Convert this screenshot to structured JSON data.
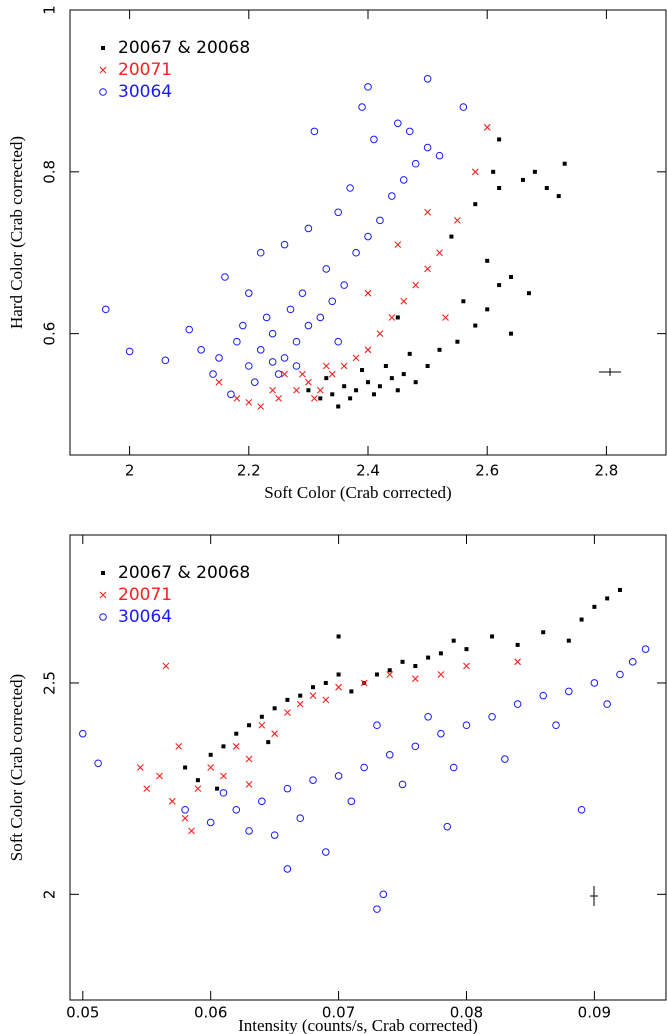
{
  "chart_data": [
    {
      "type": "scatter",
      "xlabel": "Soft Color (Crab corrected)",
      "ylabel": "Hard Color (Crab corrected)",
      "xlim": [
        1.9,
        2.9
      ],
      "ylim": [
        0.45,
        1
      ],
      "xticks": [
        2,
        2.2,
        2.4,
        2.6,
        2.8
      ],
      "yticks": [
        0.6,
        0.8,
        1
      ],
      "series": [
        {
          "name": "20067 & 20068",
          "color": "#000000",
          "marker": "square",
          "x": [
            2.3,
            2.32,
            2.34,
            2.36,
            2.38,
            2.4,
            2.42,
            2.44,
            2.46,
            2.48,
            2.33,
            2.37,
            2.41,
            2.45,
            2.5,
            2.35,
            2.39,
            2.43,
            2.47,
            2.52,
            2.55,
            2.58,
            2.6,
            2.56,
            2.62,
            2.64,
            2.6,
            2.54,
            2.58,
            2.62,
            2.66,
            2.68,
            2.7,
            2.72,
            2.73,
            2.61,
            2.62,
            2.64,
            2.67,
            2.45
          ],
          "values": [
            0.53,
            0.52,
            0.525,
            0.535,
            0.53,
            0.54,
            0.535,
            0.545,
            0.55,
            0.54,
            0.545,
            0.52,
            0.525,
            0.53,
            0.56,
            0.51,
            0.555,
            0.56,
            0.575,
            0.58,
            0.59,
            0.61,
            0.63,
            0.64,
            0.66,
            0.67,
            0.69,
            0.72,
            0.76,
            0.78,
            0.79,
            0.8,
            0.78,
            0.77,
            0.81,
            0.8,
            0.84,
            0.6,
            0.65,
            0.62
          ]
        },
        {
          "name": "20071",
          "color": "#ff2020",
          "marker": "cross",
          "x": [
            2.18,
            2.2,
            2.22,
            2.25,
            2.28,
            2.3,
            2.32,
            2.34,
            2.36,
            2.26,
            2.24,
            2.38,
            2.4,
            2.42,
            2.44,
            2.46,
            2.48,
            2.5,
            2.52,
            2.55,
            2.58,
            2.6,
            2.15,
            2.29,
            2.33,
            2.31,
            2.4,
            2.45,
            2.5,
            2.53
          ],
          "values": [
            0.52,
            0.515,
            0.51,
            0.52,
            0.53,
            0.54,
            0.53,
            0.55,
            0.56,
            0.55,
            0.53,
            0.57,
            0.58,
            0.6,
            0.62,
            0.64,
            0.66,
            0.68,
            0.7,
            0.74,
            0.8,
            0.855,
            0.54,
            0.55,
            0.56,
            0.52,
            0.65,
            0.71,
            0.75,
            0.62
          ]
        },
        {
          "name": "30064",
          "color": "#1a1aff",
          "marker": "circle",
          "x": [
            1.96,
            2.0,
            2.06,
            2.12,
            2.1,
            2.15,
            2.18,
            2.2,
            2.22,
            2.24,
            2.26,
            2.28,
            2.3,
            2.25,
            2.27,
            2.29,
            2.32,
            2.34,
            2.36,
            2.33,
            2.38,
            2.4,
            2.42,
            2.44,
            2.46,
            2.48,
            2.5,
            2.47,
            2.52,
            2.45,
            2.41,
            2.39,
            2.5,
            2.4,
            2.31,
            2.56,
            2.2,
            2.16,
            2.22,
            2.26,
            2.35,
            2.37,
            2.3,
            2.23,
            2.19,
            2.14,
            2.21,
            2.28,
            2.35,
            2.24,
            2.17
          ],
          "values": [
            0.63,
            0.578,
            0.567,
            0.58,
            0.605,
            0.57,
            0.59,
            0.56,
            0.58,
            0.6,
            0.57,
            0.59,
            0.61,
            0.55,
            0.63,
            0.65,
            0.62,
            0.64,
            0.66,
            0.68,
            0.7,
            0.72,
            0.74,
            0.77,
            0.79,
            0.81,
            0.83,
            0.85,
            0.82,
            0.86,
            0.84,
            0.88,
            0.915,
            0.905,
            0.85,
            0.88,
            0.65,
            0.67,
            0.7,
            0.71,
            0.75,
            0.78,
            0.73,
            0.62,
            0.61,
            0.55,
            0.54,
            0.56,
            0.59,
            0.565,
            0.525
          ]
        }
      ]
    },
    {
      "type": "scatter",
      "xlabel": "Intensity (counts/s, Crab corrected)",
      "ylabel": "Soft Color (Crab corrected)",
      "xlim": [
        0.049,
        0.0956
      ],
      "ylim": [
        1.75,
        2.85
      ],
      "xticks": [
        0.05,
        0.06,
        0.07,
        0.08,
        0.09
      ],
      "yticks": [
        2,
        2.5
      ],
      "series": [
        {
          "name": "20067 & 20068",
          "color": "#000000",
          "marker": "square",
          "x": [
            0.058,
            0.059,
            0.06,
            0.061,
            0.062,
            0.063,
            0.064,
            0.065,
            0.066,
            0.067,
            0.068,
            0.069,
            0.07,
            0.071,
            0.072,
            0.073,
            0.074,
            0.075,
            0.076,
            0.077,
            0.078,
            0.079,
            0.08,
            0.082,
            0.084,
            0.086,
            0.088,
            0.089,
            0.09,
            0.091,
            0.092,
            0.07,
            0.0645,
            0.0605
          ],
          "values": [
            2.3,
            2.27,
            2.33,
            2.35,
            2.38,
            2.4,
            2.42,
            2.44,
            2.46,
            2.47,
            2.49,
            2.5,
            2.52,
            2.48,
            2.5,
            2.52,
            2.53,
            2.55,
            2.54,
            2.56,
            2.57,
            2.6,
            2.58,
            2.61,
            2.59,
            2.62,
            2.6,
            2.65,
            2.68,
            2.7,
            2.72,
            2.61,
            2.36,
            2.25
          ]
        },
        {
          "name": "20071",
          "color": "#ff2020",
          "marker": "cross",
          "x": [
            0.0545,
            0.055,
            0.056,
            0.057,
            0.058,
            0.059,
            0.06,
            0.061,
            0.062,
            0.063,
            0.064,
            0.065,
            0.066,
            0.067,
            0.068,
            0.069,
            0.07,
            0.072,
            0.074,
            0.076,
            0.078,
            0.08,
            0.084,
            0.0565,
            0.0585,
            0.0575,
            0.063
          ],
          "values": [
            2.3,
            2.25,
            2.28,
            2.22,
            2.18,
            2.25,
            2.3,
            2.28,
            2.35,
            2.32,
            2.4,
            2.38,
            2.43,
            2.45,
            2.47,
            2.46,
            2.49,
            2.5,
            2.52,
            2.51,
            2.52,
            2.54,
            2.55,
            2.54,
            2.15,
            2.35,
            2.26
          ]
        },
        {
          "name": "30064",
          "color": "#1a1aff",
          "marker": "circle",
          "x": [
            0.05,
            0.0512,
            0.058,
            0.06,
            0.062,
            0.064,
            0.066,
            0.068,
            0.07,
            0.072,
            0.074,
            0.076,
            0.078,
            0.08,
            0.082,
            0.084,
            0.086,
            0.088,
            0.09,
            0.092,
            0.093,
            0.094,
            0.066,
            0.069,
            0.0735,
            0.073,
            0.0785,
            0.063,
            0.067,
            0.071,
            0.075,
            0.079,
            0.083,
            0.087,
            0.091,
            0.089,
            0.073,
            0.077,
            0.065,
            0.061
          ],
          "values": [
            2.38,
            2.31,
            2.2,
            2.17,
            2.2,
            2.22,
            2.25,
            2.27,
            2.28,
            2.3,
            2.33,
            2.35,
            2.38,
            2.4,
            2.42,
            2.45,
            2.47,
            2.48,
            2.5,
            2.52,
            2.55,
            2.58,
            2.06,
            2.1,
            2.0,
            1.965,
            2.16,
            2.15,
            2.18,
            2.22,
            2.26,
            2.3,
            2.32,
            2.4,
            2.45,
            2.2,
            2.4,
            2.42,
            2.14,
            2.24
          ]
        }
      ]
    }
  ]
}
